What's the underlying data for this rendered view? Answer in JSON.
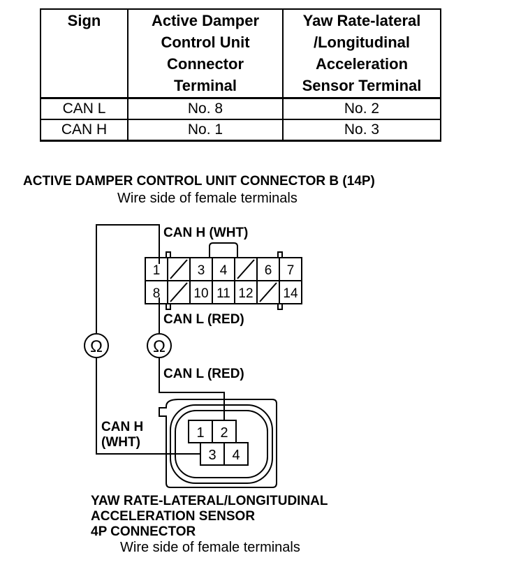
{
  "table": {
    "headers": [
      "Sign",
      "Active Damper Control Unit Connector Terminal",
      "Yaw Rate-lateral /Longitudinal Acceleration Sensor Terminal"
    ],
    "header_lines": [
      [
        "Sign"
      ],
      [
        "Active Damper",
        "Control Unit",
        "Connector",
        "Terminal"
      ],
      [
        "Yaw Rate-lateral",
        "/Longitudinal",
        "Acceleration",
        "Sensor Terminal"
      ]
    ],
    "rows": [
      [
        "CAN L",
        "No. 8",
        "No. 2"
      ],
      [
        "CAN H",
        "No. 1",
        "No. 3"
      ]
    ]
  },
  "ecu_connector": {
    "title": "ACTIVE DAMPER CONTROL UNIT CONNECTOR B (14P)",
    "subtitle": "Wire side of female terminals",
    "top_row": [
      "1",
      "",
      "3",
      "4",
      "",
      "6",
      "7"
    ],
    "bottom_row": [
      "8",
      "",
      "10",
      "11",
      "12",
      "",
      "14"
    ]
  },
  "sensor_connector": {
    "title_lines": [
      "YAW RATE-LATERAL/LONGITUDINAL",
      "ACCELERATION SENSOR",
      "4P CONNECTOR"
    ],
    "subtitle": "Wire side of female terminals",
    "pins": [
      "1",
      "2",
      "3",
      "4"
    ]
  },
  "wire_labels": {
    "can_h_top": "CAN H (WHT)",
    "can_l_mid": "CAN L (RED)",
    "can_l_low": "CAN L (RED)",
    "can_h_left_1": "CAN H",
    "can_h_left_2": "(WHT)"
  },
  "meter_symbol": "Ω"
}
